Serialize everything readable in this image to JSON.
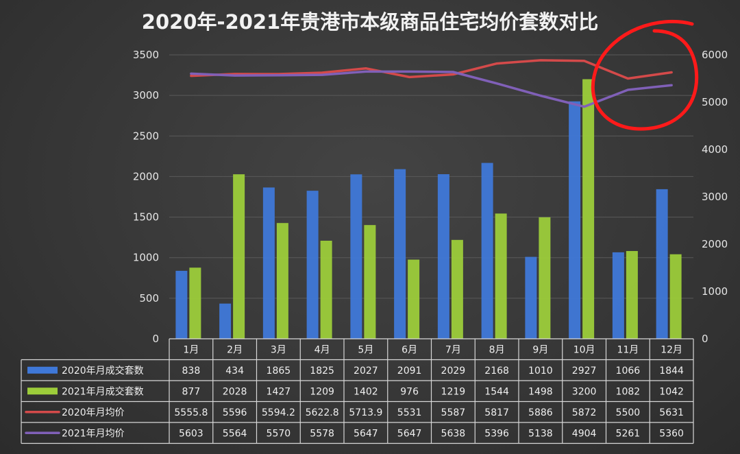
{
  "colors": {
    "series_2020_count": "#3f78d8",
    "series_2021_count": "#9ccc3a",
    "series_2020_price": "#d44a4a",
    "series_2021_price": "#8060b8",
    "annotation": "#ff1a1a",
    "text": "#f0f0f0"
  },
  "chart_data": {
    "type": "bar",
    "title": "2020年-2021年贵港市本级商品住宅均价套数对比",
    "categories": [
      "1月",
      "2月",
      "3月",
      "4月",
      "5月",
      "6月",
      "7月",
      "8月",
      "9月",
      "10月",
      "11月",
      "12月"
    ],
    "y_left": {
      "range": [
        0,
        3500
      ],
      "ticks": [
        "0",
        "500",
        "1000",
        "1500",
        "2000",
        "2500",
        "3000",
        "3500"
      ]
    },
    "y_right": {
      "range": [
        0,
        6000
      ],
      "ticks": [
        "0",
        "1000",
        "2000",
        "3000",
        "4000",
        "5000",
        "6000"
      ]
    },
    "grid": true,
    "legend": "data table below chart",
    "series": [
      {
        "name": "2020年月成交套数",
        "type": "bar",
        "axis": "left",
        "values": [
          838,
          434,
          1865,
          1825,
          2027,
          2091,
          2029,
          2168,
          1010,
          2927,
          1066,
          1844
        ],
        "labels": [
          "838",
          "434",
          "1865",
          "1825",
          "2027",
          "2091",
          "2029",
          "2168",
          "1010",
          "2927",
          "1066",
          "1844"
        ]
      },
      {
        "name": "2021年月成交套数",
        "type": "bar",
        "axis": "left",
        "values": [
          877,
          2028,
          1427,
          1209,
          1402,
          976,
          1219,
          1544,
          1498,
          3200,
          1082,
          1042
        ],
        "labels": [
          "877",
          "2028",
          "1427",
          "1209",
          "1402",
          "976",
          "1219",
          "1544",
          "1498",
          "3200",
          "1082",
          "1042"
        ]
      },
      {
        "name": "2020年月均价",
        "type": "line",
        "axis": "right",
        "values": [
          5555.8,
          5596,
          5594.2,
          5622.8,
          5713.9,
          5531,
          5587,
          5817,
          5886,
          5872,
          5500,
          5631
        ],
        "labels": [
          "5555.8",
          "5596",
          "5594.2",
          "5622.8",
          "5713.9",
          "5531",
          "5587",
          "5817",
          "5886",
          "5872",
          "5500",
          "5631"
        ]
      },
      {
        "name": "2021年月均价",
        "type": "line",
        "axis": "right",
        "values": [
          5603,
          5564,
          5570,
          5578,
          5647,
          5647,
          5638,
          5396,
          5138,
          4904,
          5261,
          5360
        ],
        "labels": [
          "5603",
          "5564",
          "5570",
          "5578",
          "5647",
          "5647",
          "5638",
          "5396",
          "5138",
          "4904",
          "5261",
          "5360"
        ]
      }
    ],
    "annotations": [
      "hand-drawn red circle around months 11–12 of the price lines"
    ]
  }
}
